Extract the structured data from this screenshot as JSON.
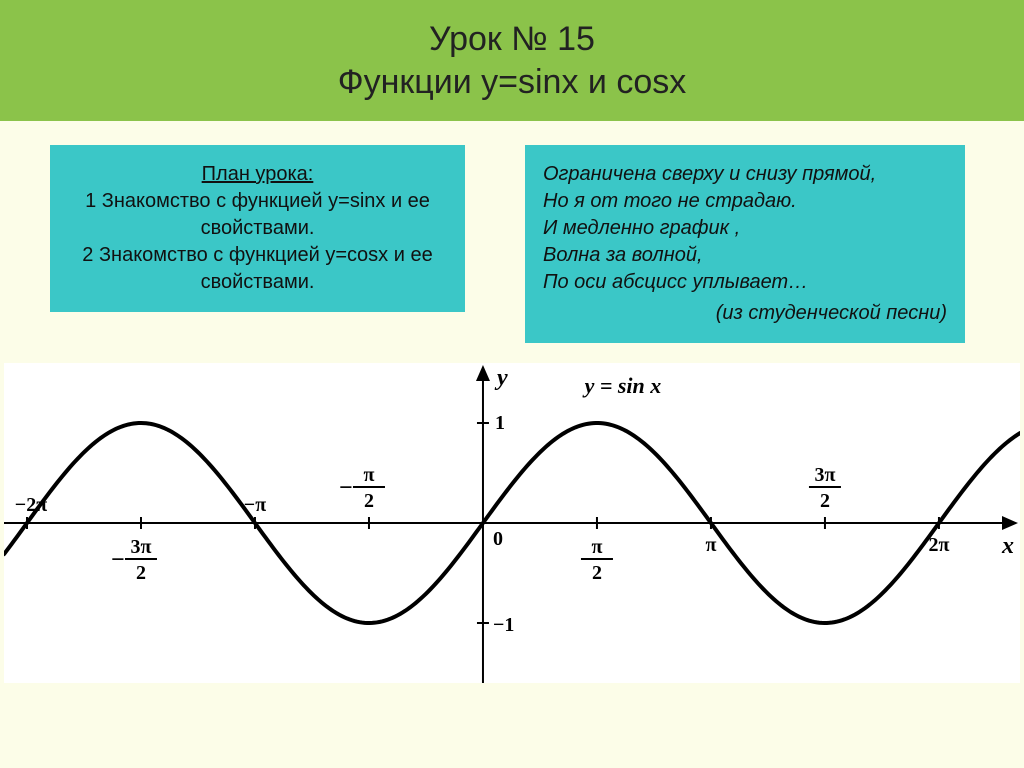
{
  "title": {
    "line1": "Урок № 15",
    "line2": "Функции y=sinx и cosx"
  },
  "plan": {
    "heading": "План урока:",
    "item1": "1 Знакомство с функцией y=sinx и ее свойствами.",
    "item2": "2 Знакомство с функцией y=cosx и ее свойствами."
  },
  "poem": {
    "l1": "Ограничена сверху и снизу прямой,",
    "l2": "Но я от того не страдаю.",
    "l3": "И медленно график ,",
    "l4": "Волна за волной,",
    "l5": "По оси абсцисс уплывает…",
    "src": "(из студенческой песни)"
  },
  "chart": {
    "type": "line",
    "function_label": "y = sin x",
    "x_axis_label": "x",
    "y_axis_label": "y",
    "origin_label": "0",
    "y_tick_plus": "1",
    "y_tick_minus": "−1",
    "x_range_pi": [
      -6.6,
      7.4
    ],
    "y_range": [
      -1.6,
      1.6
    ],
    "x_ticks_pi": [
      -6.2832,
      -4.7124,
      -3.1416,
      -1.5708,
      0,
      1.5708,
      3.1416,
      4.7124,
      6.2832
    ],
    "x_tick_labels": [
      "−2π",
      "",
      "−π",
      "",
      "",
      "",
      "π",
      "",
      "2π"
    ],
    "frac_ticks": [
      {
        "at": -4.7124,
        "top": "3π",
        "bot": "2",
        "neg": true,
        "below": true
      },
      {
        "at": -1.5708,
        "top": "π",
        "bot": "2",
        "neg": true,
        "below": false
      },
      {
        "at": 1.5708,
        "top": "π",
        "bot": "2",
        "neg": false,
        "below": true
      },
      {
        "at": 4.7124,
        "top": "3π",
        "bot": "2",
        "neg": false,
        "below": false
      }
    ],
    "colors": {
      "page_bg": "#fcfde8",
      "title_bg": "#8bc34a",
      "card_bg": "#3bc7c7",
      "chart_bg": "#ffffff",
      "axis": "#000000",
      "curve": "#000000",
      "text": "#000000"
    },
    "stroke": {
      "curve_width": 4,
      "axis_width": 2,
      "tick_len": 6
    },
    "fontsize": {
      "title": 34,
      "card": 20,
      "axis_label": 24,
      "tick": 20,
      "fn_label": 22,
      "frac": 20
    }
  }
}
